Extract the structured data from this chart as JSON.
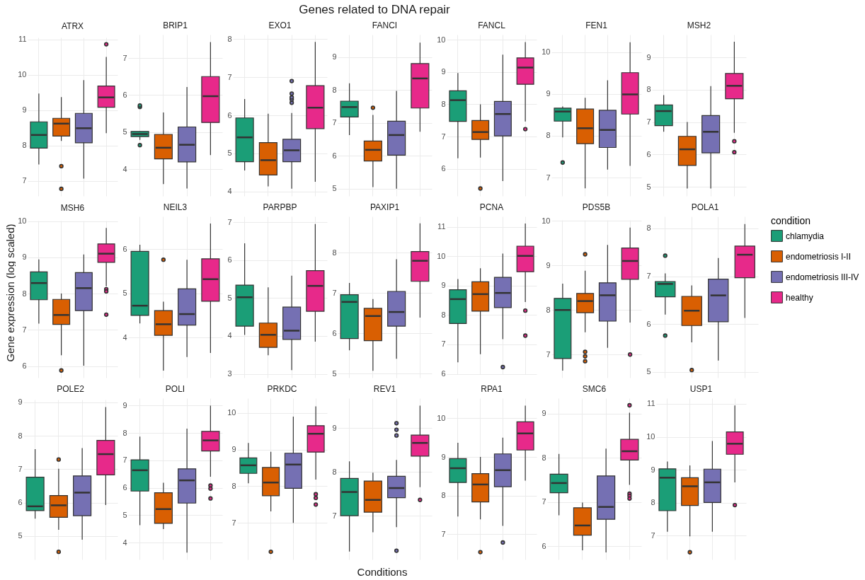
{
  "chart_data": [
    {
      "type": "other",
      "title": "Genes related to DNA repair",
      "xlabel": "Conditions",
      "ylabel": "Gene expression (log scaled)"
    },
    {
      "type": "box",
      "title": "ATRX",
      "categories": [
        null,
        null,
        null,
        null
      ],
      "ylim": [
        6.58,
        11.05
      ],
      "yticks": [
        7,
        8,
        9,
        10,
        11
      ],
      "grid": true,
      "tick_labels": "y",
      "series": [
        {
          "color": "#1b9e77",
          "boxes": [
            {
              "low": 7.47,
              "q1": 7.93,
              "median": 8.3,
              "q3": 8.67,
              "high": 9.47
            },
            null,
            null,
            null
          ]
        },
        {
          "color": "#d95f02",
          "boxes": [
            null,
            {
              "low": 8.13,
              "q1": 8.27,
              "median": 8.62,
              "q3": 8.77,
              "high": 9.37,
              "outliers": [
                7.42,
                6.78
              ]
            },
            null,
            null
          ]
        },
        {
          "color": "#7570b3",
          "boxes": [
            null,
            null,
            {
              "low": 7.07,
              "q1": 8.08,
              "median": 8.49,
              "q3": 8.91,
              "high": 9.85
            },
            null
          ]
        },
        {
          "color": "#e7298a",
          "boxes": [
            null,
            null,
            null,
            {
              "low": 8.35,
              "q1": 9.08,
              "median": 9.36,
              "q3": 9.68,
              "high": 10.5,
              "outliers": [
                10.86
              ]
            }
          ]
        }
      ]
    },
    {
      "type": "box",
      "title": "BRIP1",
      "categories": [
        null,
        null,
        null,
        null
      ],
      "ylim": [
        3.28,
        7.63
      ],
      "yticks": [
        4,
        5,
        6,
        7
      ],
      "grid": true,
      "tick_labels": "y",
      "series": [
        {
          "color": "#1b9e77",
          "boxes": [
            {
              "low": 4.79,
              "q1": 4.88,
              "median": 4.95,
              "q3": 5.02,
              "high": 5.02,
              "outliers": [
                5.68,
                5.72,
                4.65
              ]
            },
            null,
            null,
            null
          ]
        },
        {
          "color": "#d95f02",
          "boxes": [
            null,
            {
              "low": 3.6,
              "q1": 4.28,
              "median": 4.58,
              "q3": 4.94,
              "high": 5.53
            },
            null,
            null
          ]
        },
        {
          "color": "#7570b3",
          "boxes": [
            null,
            null,
            {
              "low": 3.48,
              "q1": 4.2,
              "median": 4.66,
              "q3": 5.14,
              "high": 6.22
            },
            null
          ]
        },
        {
          "color": "#e7298a",
          "boxes": [
            null,
            null,
            null,
            {
              "low": 4.38,
              "q1": 5.26,
              "median": 5.97,
              "q3": 6.5,
              "high": 7.43
            }
          ]
        }
      ]
    },
    {
      "type": "box",
      "title": "EXO1",
      "categories": [
        null,
        null,
        null,
        null
      ],
      "ylim": [
        3.88,
        8.12
      ],
      "yticks": [
        4,
        5,
        6,
        7,
        8
      ],
      "grid": true,
      "tick_labels": "y",
      "series": [
        {
          "color": "#1b9e77",
          "boxes": [
            {
              "low": 4.55,
              "q1": 4.78,
              "median": 5.42,
              "q3": 5.93,
              "high": 6.43
            },
            null,
            null,
            null
          ]
        },
        {
          "color": "#d95f02",
          "boxes": [
            null,
            {
              "low": 4.13,
              "q1": 4.43,
              "median": 4.82,
              "q3": 5.28,
              "high": 6.04
            },
            null,
            null
          ]
        },
        {
          "color": "#7570b3",
          "boxes": [
            null,
            null,
            {
              "low": 4.07,
              "q1": 4.78,
              "median": 5.08,
              "q3": 5.37,
              "high": 6.06,
              "outliers": [
                6.33,
                6.42,
                6.47,
                6.57,
                6.9
              ]
            },
            null
          ]
        },
        {
          "color": "#e7298a",
          "boxes": [
            null,
            null,
            null,
            {
              "low": 4.25,
              "q1": 5.65,
              "median": 6.2,
              "q3": 6.78,
              "high": 7.93
            }
          ]
        }
      ]
    },
    {
      "type": "box",
      "title": "FANCI",
      "categories": [
        null,
        null,
        null,
        null
      ],
      "ylim": [
        4.78,
        9.68
      ],
      "yticks": [
        5,
        6,
        7,
        8,
        9
      ],
      "grid": true,
      "tick_labels": "y",
      "series": [
        {
          "color": "#1b9e77",
          "boxes": [
            {
              "low": 6.63,
              "q1": 7.18,
              "median": 7.48,
              "q3": 7.66,
              "high": 8.2
            },
            null,
            null,
            null
          ]
        },
        {
          "color": "#d95f02",
          "boxes": [
            null,
            {
              "low": 5.05,
              "q1": 5.84,
              "median": 6.18,
              "q3": 6.45,
              "high": 7.24,
              "outliers": [
                7.46
              ]
            },
            null,
            null
          ]
        },
        {
          "color": "#7570b3",
          "boxes": [
            null,
            null,
            {
              "low": 5.0,
              "q1": 6.02,
              "median": 6.63,
              "q3": 7.05,
              "high": 7.97
            },
            null
          ]
        },
        {
          "color": "#e7298a",
          "boxes": [
            null,
            null,
            null,
            {
              "low": 6.73,
              "q1": 7.45,
              "median": 8.35,
              "q3": 8.8,
              "high": 9.44
            }
          ]
        }
      ]
    },
    {
      "type": "box",
      "title": "FANCL",
      "categories": [
        null,
        null,
        null,
        null
      ],
      "ylim": [
        5.16,
        10.16
      ],
      "yticks": [
        6,
        7,
        8,
        9,
        10
      ],
      "grid": true,
      "tick_labels": "y",
      "series": [
        {
          "color": "#1b9e77",
          "boxes": [
            {
              "low": 6.33,
              "q1": 7.47,
              "median": 8.13,
              "q3": 8.42,
              "high": 8.97
            },
            null,
            null,
            null
          ]
        },
        {
          "color": "#d95f02",
          "boxes": [
            null,
            {
              "low": 6.35,
              "q1": 6.91,
              "median": 7.14,
              "q3": 7.5,
              "high": 8.0,
              "outliers": [
                5.39
              ]
            },
            null,
            null
          ]
        },
        {
          "color": "#7570b3",
          "boxes": [
            null,
            null,
            {
              "low": 5.62,
              "q1": 7.02,
              "median": 7.7,
              "q3": 8.09,
              "high": 9.54
            },
            null
          ]
        },
        {
          "color": "#e7298a",
          "boxes": [
            null,
            null,
            null,
            {
              "low": 7.47,
              "q1": 8.62,
              "median": 9.14,
              "q3": 9.44,
              "high": 9.93,
              "outliers": [
                7.23
              ]
            }
          ]
        }
      ]
    },
    {
      "type": "box",
      "title": "FEN1",
      "categories": [
        null,
        null,
        null,
        null
      ],
      "ylim": [
        6.56,
        10.42
      ],
      "yticks": [
        7,
        8,
        9,
        10
      ],
      "grid": true,
      "tick_labels": "y",
      "series": [
        {
          "color": "#1b9e77",
          "boxes": [
            {
              "low": 7.96,
              "q1": 8.35,
              "median": 8.58,
              "q3": 8.66,
              "high": 8.7,
              "outliers": [
                7.36
              ]
            },
            null,
            null,
            null
          ]
        },
        {
          "color": "#d95f02",
          "boxes": [
            null,
            {
              "low": 6.74,
              "q1": 7.81,
              "median": 8.18,
              "q3": 8.64,
              "high": 8.91
            },
            null,
            null
          ]
        },
        {
          "color": "#7570b3",
          "boxes": [
            null,
            null,
            {
              "low": 7.19,
              "q1": 7.72,
              "median": 8.14,
              "q3": 8.61,
              "high": 9.33
            },
            null
          ]
        },
        {
          "color": "#e7298a",
          "boxes": [
            null,
            null,
            null,
            {
              "low": 7.28,
              "q1": 8.52,
              "median": 8.99,
              "q3": 9.51,
              "high": 10.24
            }
          ]
        }
      ]
    },
    {
      "type": "box",
      "title": "MSH2",
      "categories": [
        null,
        null,
        null,
        null
      ],
      "ylim": [
        4.72,
        9.7
      ],
      "yticks": [
        5,
        6,
        7,
        8,
        9
      ],
      "grid": true,
      "tick_labels": "y",
      "series": [
        {
          "color": "#1b9e77",
          "boxes": [
            {
              "low": 6.7,
              "q1": 6.89,
              "median": 7.34,
              "q3": 7.53,
              "high": 7.83
            },
            null,
            null,
            null
          ]
        },
        {
          "color": "#d95f02",
          "boxes": [
            null,
            {
              "low": 4.95,
              "q1": 5.66,
              "median": 6.16,
              "q3": 6.56,
              "high": 7.0
            },
            null,
            null
          ]
        },
        {
          "color": "#7570b3",
          "boxes": [
            null,
            null,
            {
              "low": 4.95,
              "q1": 6.05,
              "median": 6.7,
              "q3": 7.2,
              "high": 8.11
            },
            null
          ]
        },
        {
          "color": "#e7298a",
          "boxes": [
            null,
            null,
            null,
            {
              "low": 6.67,
              "q1": 7.72,
              "median": 8.12,
              "q3": 8.5,
              "high": 9.48,
              "outliers": [
                6.41,
                6.07
              ]
            }
          ]
        }
      ]
    },
    {
      "type": "box",
      "title": "MSH6",
      "categories": [
        null,
        null,
        null,
        null
      ],
      "ylim": [
        5.68,
        10.01
      ],
      "yticks": [
        6,
        7,
        8,
        9,
        10
      ],
      "grid": true,
      "tick_labels": "y",
      "series": [
        {
          "color": "#1b9e77",
          "boxes": [
            {
              "low": 7.17,
              "q1": 7.83,
              "median": 8.29,
              "q3": 8.6,
              "high": 8.94
            },
            null,
            null,
            null
          ]
        },
        {
          "color": "#d95f02",
          "boxes": [
            null,
            {
              "low": 6.3,
              "q1": 7.15,
              "median": 7.41,
              "q3": 7.84,
              "high": 8.0,
              "outliers": [
                5.88
              ]
            },
            null,
            null
          ]
        },
        {
          "color": "#7570b3",
          "boxes": [
            null,
            null,
            {
              "low": 6.01,
              "q1": 7.53,
              "median": 8.15,
              "q3": 8.58,
              "high": 9.08
            },
            null
          ]
        },
        {
          "color": "#e7298a",
          "boxes": [
            null,
            null,
            null,
            {
              "low": 8.2,
              "q1": 8.86,
              "median": 9.1,
              "q3": 9.37,
              "high": 9.81,
              "outliers": [
                8.12,
                8.06,
                7.42
              ]
            }
          ]
        }
      ]
    },
    {
      "type": "box",
      "title": "NEIL3",
      "categories": [
        null,
        null,
        null,
        null
      ],
      "ylim": [
        3.09,
        6.74
      ],
      "yticks": [
        4,
        5,
        6
      ],
      "grid": true,
      "tick_labels": "y",
      "series": [
        {
          "color": "#1b9e77",
          "boxes": [
            {
              "low": 4.32,
              "q1": 4.5,
              "median": 4.72,
              "q3": 5.95,
              "high": 6.1
            },
            null,
            null,
            null
          ]
        },
        {
          "color": "#d95f02",
          "boxes": [
            null,
            {
              "low": 3.25,
              "q1": 4.05,
              "median": 4.3,
              "q3": 4.61,
              "high": 4.81,
              "outliers": [
                5.76
              ]
            },
            null,
            null
          ]
        },
        {
          "color": "#7570b3",
          "boxes": [
            null,
            null,
            {
              "low": 3.56,
              "q1": 4.28,
              "median": 4.53,
              "q3": 5.1,
              "high": 5.76
            },
            null
          ]
        },
        {
          "color": "#e7298a",
          "boxes": [
            null,
            null,
            null,
            {
              "low": 3.65,
              "q1": 4.82,
              "median": 5.32,
              "q3": 5.78,
              "high": 6.58
            }
          ]
        }
      ]
    },
    {
      "type": "box",
      "title": "PARPBP",
      "categories": [
        null,
        null,
        null,
        null
      ],
      "ylim": [
        2.9,
        7.15
      ],
      "yticks": [
        3,
        4,
        5,
        6,
        7
      ],
      "grid": true,
      "tick_labels": "y",
      "series": [
        {
          "color": "#1b9e77",
          "boxes": [
            {
              "low": 4.03,
              "q1": 4.26,
              "median": 5.02,
              "q3": 5.34,
              "high": 6.44
            },
            null,
            null,
            null
          ]
        },
        {
          "color": "#d95f02",
          "boxes": [
            null,
            {
              "low": 3.49,
              "q1": 3.7,
              "median": 4.03,
              "q3": 4.34,
              "high": 5.28
            },
            null,
            null
          ]
        },
        {
          "color": "#7570b3",
          "boxes": [
            null,
            null,
            {
              "low": 3.1,
              "q1": 3.91,
              "median": 4.14,
              "q3": 4.76,
              "high": 5.59
            },
            null
          ]
        },
        {
          "color": "#e7298a",
          "boxes": [
            null,
            null,
            null,
            {
              "low": 3.85,
              "q1": 4.65,
              "median": 5.32,
              "q3": 5.72,
              "high": 6.95
            }
          ]
        }
      ]
    },
    {
      "type": "box",
      "title": "PAXIP1",
      "categories": [
        null,
        null,
        null,
        null
      ],
      "ylim": [
        4.9,
        8.9
      ],
      "yticks": [
        5,
        6,
        7,
        8
      ],
      "grid": true,
      "tick_labels": "y",
      "series": [
        {
          "color": "#1b9e77",
          "boxes": [
            {
              "low": 5.58,
              "q1": 5.87,
              "median": 6.78,
              "q3": 6.96,
              "high": 7.25
            },
            null,
            null,
            null
          ]
        },
        {
          "color": "#d95f02",
          "boxes": [
            null,
            {
              "low": 5.07,
              "q1": 5.82,
              "median": 6.43,
              "q3": 6.62,
              "high": 6.85
            },
            null,
            null
          ]
        },
        {
          "color": "#7570b3",
          "boxes": [
            null,
            null,
            {
              "low": 5.37,
              "q1": 6.18,
              "median": 6.53,
              "q3": 7.04,
              "high": 7.84
            },
            null
          ]
        },
        {
          "color": "#e7298a",
          "boxes": [
            null,
            null,
            null,
            {
              "low": 6.39,
              "q1": 7.29,
              "median": 7.8,
              "q3": 8.03,
              "high": 8.73
            }
          ]
        }
      ]
    },
    {
      "type": "box",
      "title": "PCNA",
      "categories": [
        null,
        null,
        null,
        null
      ],
      "ylim": [
        5.99,
        11.35
      ],
      "yticks": [
        6,
        7,
        8,
        9,
        10,
        11
      ],
      "grid": true,
      "tick_labels": "y",
      "series": [
        {
          "color": "#1b9e77",
          "boxes": [
            {
              "low": 6.39,
              "q1": 7.71,
              "median": 8.54,
              "q3": 8.86,
              "high": 9.22
            },
            null,
            null,
            null
          ]
        },
        {
          "color": "#d95f02",
          "boxes": [
            null,
            {
              "low": 6.67,
              "q1": 8.13,
              "median": 8.71,
              "q3": 9.13,
              "high": 9.59
            },
            null,
            null
          ]
        },
        {
          "color": "#7570b3",
          "boxes": [
            null,
            null,
            {
              "low": 7.18,
              "q1": 8.25,
              "median": 8.75,
              "q3": 9.28,
              "high": 10.09,
              "outliers": [
                6.23
              ]
            },
            null
          ]
        },
        {
          "color": "#e7298a",
          "boxes": [
            null,
            null,
            null,
            {
              "low": 8.44,
              "q1": 9.47,
              "median": 10.01,
              "q3": 10.34,
              "high": 11.11,
              "outliers": [
                8.15,
                7.3
              ]
            }
          ]
        }
      ]
    },
    {
      "type": "box",
      "title": "PDS5B",
      "categories": [
        null,
        null,
        null,
        null
      ],
      "ylim": [
        6.48,
        10.02
      ],
      "yticks": [
        7,
        8,
        9,
        10
      ],
      "grid": true,
      "tick_labels": "y",
      "series": [
        {
          "color": "#1b9e77",
          "boxes": [
            {
              "low": 6.64,
              "q1": 6.91,
              "median": 8.0,
              "q3": 8.26,
              "high": 8.59
            },
            null,
            null,
            null
          ]
        },
        {
          "color": "#d95f02",
          "boxes": [
            null,
            {
              "low": 7.5,
              "q1": 7.94,
              "median": 8.2,
              "q3": 8.37,
              "high": 8.88,
              "outliers": [
                9.25,
                7.06,
                6.96,
                6.85
              ]
            },
            null,
            null
          ]
        },
        {
          "color": "#7570b3",
          "boxes": [
            null,
            null,
            {
              "low": 7.15,
              "q1": 7.75,
              "median": 8.33,
              "q3": 8.61,
              "high": 9.46
            },
            null
          ]
        },
        {
          "color": "#e7298a",
          "boxes": [
            null,
            null,
            null,
            {
              "low": 7.72,
              "q1": 8.69,
              "median": 9.1,
              "q3": 9.39,
              "high": 9.85,
              "outliers": [
                7.0
              ]
            }
          ]
        }
      ]
    },
    {
      "type": "box",
      "title": "POLA1",
      "categories": [
        null,
        null,
        null,
        null
      ],
      "ylim": [
        4.88,
        8.25
      ],
      "yticks": [
        5,
        6,
        7,
        8
      ],
      "grid": true,
      "tick_labels": "y",
      "legend": "right",
      "legend_title": "condition",
      "series": [
        {
          "name": "chlamydia",
          "color": "#1b9e77",
          "boxes": [
            {
              "low": 6.2,
              "q1": 6.57,
              "median": 6.84,
              "q3": 6.89,
              "high": 7.06,
              "outliers": [
                7.43,
                5.76
              ]
            },
            null,
            null,
            null
          ]
        },
        {
          "name": "endometriosis I-II",
          "color": "#d95f02",
          "boxes": [
            null,
            {
              "low": 5.62,
              "q1": 5.97,
              "median": 6.28,
              "q3": 6.58,
              "high": 6.81,
              "outliers": [
                5.04
              ]
            },
            null,
            null
          ]
        },
        {
          "name": "endometriosis III-IV",
          "color": "#7570b3",
          "boxes": [
            null,
            null,
            {
              "low": 5.24,
              "q1": 6.05,
              "median": 6.6,
              "q3": 6.94,
              "high": 7.38
            },
            null
          ]
        },
        {
          "name": "healthy",
          "color": "#e7298a",
          "boxes": [
            null,
            null,
            null,
            {
              "low": 6.13,
              "q1": 6.97,
              "median": 7.45,
              "q3": 7.63,
              "high": 8.09
            }
          ]
        }
      ]
    },
    {
      "type": "box",
      "title": "POLE2",
      "categories": [
        null,
        null,
        null,
        null
      ],
      "ylim": [
        4.3,
        9.08
      ],
      "yticks": [
        5,
        6,
        7,
        8,
        9
      ],
      "grid": true,
      "tick_labels": "y",
      "series": [
        {
          "color": "#1b9e77",
          "boxes": [
            {
              "low": 5.52,
              "q1": 5.76,
              "median": 5.89,
              "q3": 6.76,
              "high": 7.6
            },
            null,
            null,
            null
          ]
        },
        {
          "color": "#d95f02",
          "boxes": [
            null,
            {
              "low": 5.19,
              "q1": 5.56,
              "median": 5.92,
              "q3": 6.21,
              "high": 7.01,
              "outliers": [
                7.29,
                4.53
              ]
            },
            null,
            null
          ]
        },
        {
          "color": "#7570b3",
          "boxes": [
            null,
            null,
            {
              "low": 4.89,
              "q1": 5.61,
              "median": 6.3,
              "q3": 6.8,
              "high": 7.63
            },
            null
          ]
        },
        {
          "color": "#e7298a",
          "boxes": [
            null,
            null,
            null,
            {
              "low": 5.93,
              "q1": 6.83,
              "median": 7.45,
              "q3": 7.86,
              "high": 8.86
            }
          ]
        }
      ]
    },
    {
      "type": "box",
      "title": "POLI",
      "categories": [
        null,
        null,
        null,
        null
      ],
      "ylim": [
        3.38,
        9.27
      ],
      "yticks": [
        4,
        5,
        6,
        7,
        8,
        9
      ],
      "grid": true,
      "tick_labels": "y",
      "series": [
        {
          "color": "#1b9e77",
          "boxes": [
            {
              "low": 4.63,
              "q1": 5.88,
              "median": 6.64,
              "q3": 7.02,
              "high": 7.87
            },
            null,
            null,
            null
          ]
        },
        {
          "color": "#d95f02",
          "boxes": [
            null,
            {
              "low": 4.49,
              "q1": 4.7,
              "median": 5.22,
              "q3": 5.82,
              "high": 6.18
            },
            null,
            null
          ]
        },
        {
          "color": "#7570b3",
          "boxes": [
            null,
            null,
            {
              "low": 3.63,
              "q1": 5.44,
              "median": 6.27,
              "q3": 6.69,
              "high": 8.16
            },
            null
          ]
        },
        {
          "color": "#e7298a",
          "boxes": [
            null,
            null,
            null,
            {
              "low": 6.4,
              "q1": 7.34,
              "median": 7.73,
              "q3": 8.06,
              "high": 9.0,
              "outliers": [
                6.08,
                5.97,
                5.61
              ]
            }
          ]
        }
      ]
    },
    {
      "type": "box",
      "title": "PRKDC",
      "categories": [
        null,
        null,
        null,
        null
      ],
      "ylim": [
        6.0,
        10.4
      ],
      "yticks": [
        7,
        8,
        9,
        10
      ],
      "grid": true,
      "tick_labels": "y",
      "series": [
        {
          "color": "#1b9e77",
          "boxes": [
            {
              "low": 8.08,
              "q1": 8.35,
              "median": 8.57,
              "q3": 8.77,
              "high": 9.18
            },
            null,
            null,
            null
          ]
        },
        {
          "color": "#d95f02",
          "boxes": [
            null,
            {
              "low": 7.31,
              "q1": 7.74,
              "median": 8.1,
              "q3": 8.51,
              "high": 8.94,
              "outliers": [
                6.21
              ]
            },
            null,
            null
          ]
        },
        {
          "color": "#7570b3",
          "boxes": [
            null,
            null,
            {
              "low": 7.0,
              "q1": 7.94,
              "median": 8.59,
              "q3": 8.9,
              "high": 9.9
            },
            null
          ]
        },
        {
          "color": "#e7298a",
          "boxes": [
            null,
            null,
            null,
            {
              "low": 8.18,
              "q1": 8.93,
              "median": 9.43,
              "q3": 9.65,
              "high": 10.18,
              "outliers": [
                7.78,
                7.68,
                7.5
              ]
            }
          ]
        }
      ]
    },
    {
      "type": "box",
      "title": "REV1",
      "categories": [
        null,
        null,
        null,
        null
      ],
      "ylim": [
        6.0,
        9.68
      ],
      "yticks": [
        7,
        8,
        9
      ],
      "grid": true,
      "tick_labels": "y",
      "series": [
        {
          "color": "#1b9e77",
          "boxes": [
            {
              "low": 6.18,
              "q1": 7.0,
              "median": 7.54,
              "q3": 7.85,
              "high": 8.24
            },
            null,
            null,
            null
          ]
        },
        {
          "color": "#d95f02",
          "boxes": [
            null,
            {
              "low": 6.62,
              "q1": 7.08,
              "median": 7.36,
              "q3": 7.79,
              "high": 7.98
            },
            null,
            null
          ]
        },
        {
          "color": "#7570b3",
          "boxes": [
            null,
            null,
            {
              "low": 6.74,
              "q1": 7.41,
              "median": 7.63,
              "q3": 7.9,
              "high": 8.27,
              "outliers": [
                9.11,
                8.96,
                8.83,
                6.2
              ]
            },
            null
          ]
        },
        {
          "color": "#e7298a",
          "boxes": [
            null,
            null,
            null,
            {
              "low": 7.65,
              "q1": 8.36,
              "median": 8.66,
              "q3": 8.84,
              "high": 9.51,
              "outliers": [
                7.36
              ]
            }
          ]
        }
      ]
    },
    {
      "type": "box",
      "title": "RPA1",
      "categories": [
        null,
        null,
        null,
        null
      ],
      "ylim": [
        6.35,
        10.52
      ],
      "yticks": [
        7,
        8,
        9,
        10
      ],
      "grid": true,
      "tick_labels": "y",
      "series": [
        {
          "color": "#1b9e77",
          "boxes": [
            {
              "low": 7.46,
              "q1": 8.34,
              "median": 8.71,
              "q3": 8.96,
              "high": 9.37
            },
            null,
            null,
            null
          ]
        },
        {
          "color": "#d95f02",
          "boxes": [
            null,
            {
              "low": 7.39,
              "q1": 7.84,
              "median": 8.29,
              "q3": 8.57,
              "high": 9.0,
              "outliers": [
                6.54
              ]
            },
            null,
            null
          ]
        },
        {
          "color": "#7570b3",
          "boxes": [
            null,
            null,
            {
              "low": 7.22,
              "q1": 8.23,
              "median": 8.66,
              "q3": 9.08,
              "high": 9.5,
              "outliers": [
                6.79
              ]
            },
            null
          ]
        },
        {
          "color": "#e7298a",
          "boxes": [
            null,
            null,
            null,
            {
              "low": 8.39,
              "q1": 9.18,
              "median": 9.61,
              "q3": 9.91,
              "high": 10.33
            }
          ]
        }
      ]
    },
    {
      "type": "box",
      "title": "SMC6",
      "categories": [
        null,
        null,
        null,
        null
      ],
      "ylim": [
        5.7,
        9.35
      ],
      "yticks": [
        6,
        7,
        8,
        9
      ],
      "grid": true,
      "tick_labels": "y",
      "series": [
        {
          "color": "#1b9e77",
          "boxes": [
            {
              "low": 6.7,
              "q1": 7.21,
              "median": 7.43,
              "q3": 7.63,
              "high": 8.09
            },
            null,
            null,
            null
          ]
        },
        {
          "color": "#d95f02",
          "boxes": [
            null,
            {
              "low": 5.91,
              "q1": 6.25,
              "median": 6.47,
              "q3": 6.87,
              "high": 6.99
            },
            null,
            null
          ]
        },
        {
          "color": "#7570b3",
          "boxes": [
            null,
            null,
            {
              "low": 5.86,
              "q1": 6.61,
              "median": 6.89,
              "q3": 7.59,
              "high": 8.21
            },
            null
          ]
        },
        {
          "color": "#e7298a",
          "boxes": [
            null,
            null,
            null,
            {
              "low": 7.39,
              "q1": 7.95,
              "median": 8.15,
              "q3": 8.42,
              "high": 9.02,
              "outliers": [
                9.19,
                7.19,
                7.14,
                7.08
              ]
            }
          ]
        }
      ]
    },
    {
      "type": "box",
      "title": "USP1",
      "categories": [
        null,
        null,
        null,
        null
      ],
      "ylim": [
        6.28,
        11.17
      ],
      "yticks": [
        7,
        8,
        9,
        10,
        11
      ],
      "grid": true,
      "tick_labels": "y",
      "series": [
        {
          "color": "#1b9e77",
          "boxes": [
            {
              "low": 7.12,
              "q1": 7.76,
              "median": 8.76,
              "q3": 9.03,
              "high": 9.25
            },
            null,
            null,
            null
          ]
        },
        {
          "color": "#d95f02",
          "boxes": [
            null,
            {
              "low": 6.98,
              "q1": 7.92,
              "median": 8.5,
              "q3": 8.76,
              "high": 9.13,
              "outliers": [
                6.5
              ]
            },
            null,
            null
          ]
        },
        {
          "color": "#7570b3",
          "boxes": [
            null,
            null,
            {
              "low": 7.12,
              "q1": 8.01,
              "median": 8.62,
              "q3": 9.02,
              "high": 9.87
            },
            null
          ]
        },
        {
          "color": "#e7298a",
          "boxes": [
            null,
            null,
            null,
            {
              "low": 8.62,
              "q1": 9.47,
              "median": 9.79,
              "q3": 10.15,
              "high": 10.95,
              "outliers": [
                7.93
              ]
            }
          ]
        }
      ]
    }
  ]
}
